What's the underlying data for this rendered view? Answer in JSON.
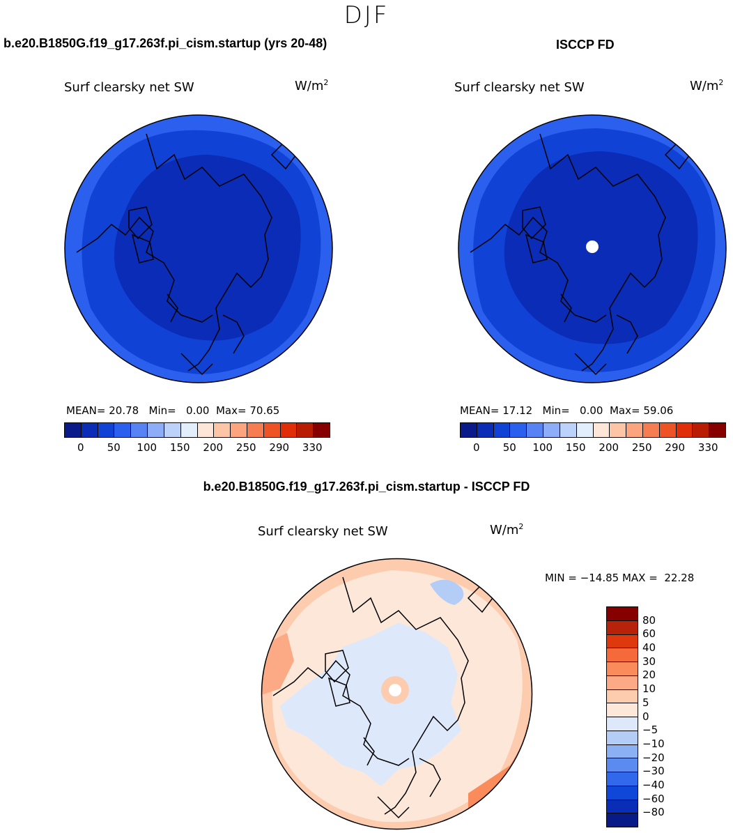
{
  "page": {
    "season": "DJF"
  },
  "chart_data": [
    {
      "type": "heatmap",
      "projection": "north-polar-stereographic",
      "title": "b.e20.B1850G.f19_g17.263f.pi_cism.startup (yrs 20-48)",
      "variable": "Surf clearsky net SW",
      "units_base": "W/m",
      "units_exp": "2",
      "stats": {
        "mean_label": "MEAN=",
        "mean": "20.78",
        "min_label": "Min=",
        "min": "0.00",
        "max_label": "Max=",
        "max": "70.65"
      },
      "zones": [
        {
          "region": "polar interior",
          "value": 15
        },
        {
          "region": "outer ring",
          "value": 35
        },
        {
          "region": "map edge",
          "value": 55
        }
      ],
      "colorbar": {
        "levels": [
          0,
          25,
          50,
          75,
          100,
          125,
          150,
          175,
          200,
          225,
          250,
          275,
          290,
          310,
          330
        ],
        "tick_labels": [
          "0",
          "50",
          "100",
          "150",
          "200",
          "250",
          "290",
          "330"
        ],
        "colors": [
          "#0b1a8a",
          "#0a2cb6",
          "#1142d6",
          "#2b5fee",
          "#5883f5",
          "#8eadf8",
          "#bcd2fb",
          "#e3eefc",
          "#fde6d8",
          "#fcc5a6",
          "#fba47d",
          "#f67d52",
          "#ee5326",
          "#e02e08",
          "#b81c03",
          "#870000"
        ]
      }
    },
    {
      "type": "heatmap",
      "projection": "north-polar-stereographic",
      "title": "ISCCP FD",
      "variable": "Surf clearsky net SW",
      "units_base": "W/m",
      "units_exp": "2",
      "stats": {
        "mean_label": "MEAN=",
        "mean": "17.12",
        "min_label": "Min=",
        "min": "0.00",
        "max_label": "Max=",
        "max": "59.06"
      },
      "zones": [
        {
          "region": "polar interior",
          "value": 12
        },
        {
          "region": "outer ring",
          "value": 32
        },
        {
          "region": "map edge",
          "value": 50
        }
      ],
      "colorbar": {
        "levels": [
          0,
          25,
          50,
          75,
          100,
          125,
          150,
          175,
          200,
          225,
          250,
          275,
          290,
          310,
          330
        ],
        "tick_labels": [
          "0",
          "50",
          "100",
          "150",
          "200",
          "250",
          "290",
          "330"
        ],
        "colors": [
          "#0b1a8a",
          "#0a2cb6",
          "#1142d6",
          "#2b5fee",
          "#5883f5",
          "#8eadf8",
          "#bcd2fb",
          "#e3eefc",
          "#fde6d8",
          "#fcc5a6",
          "#fba47d",
          "#f67d52",
          "#ee5326",
          "#e02e08",
          "#b81c03",
          "#870000"
        ]
      }
    },
    {
      "type": "heatmap",
      "projection": "north-polar-stereographic",
      "title": "b.e20.B1850G.f19_g17.263f.pi_cism.startup - ISCCP FD",
      "variable": "Surf clearsky net SW",
      "units_base": "W/m",
      "units_exp": "2",
      "stats": {
        "text": "MIN = −14.85 MAX =  22.28",
        "min": -14.85,
        "max": 22.28
      },
      "zones": [
        {
          "region": "arctic ocean / land interior",
          "value": -3
        },
        {
          "region": "mid latitudes",
          "value": 3
        },
        {
          "region": "map edge",
          "value": 12
        }
      ],
      "colorbar": {
        "levels": [
          -80,
          -60,
          -40,
          -30,
          -20,
          -10,
          -5,
          0,
          5,
          10,
          20,
          30,
          40,
          60,
          80
        ],
        "tick_labels": [
          "80",
          "60",
          "40",
          "30",
          "20",
          "10",
          "5",
          "0",
          "−5",
          "−10",
          "−20",
          "−30",
          "−40",
          "−60",
          "−80"
        ],
        "colors_top_to_bottom": [
          "#860000",
          "#b7230a",
          "#e0380d",
          "#f56a3a",
          "#fa8c5c",
          "#fcaa85",
          "#fdcbae",
          "#fde7d8",
          "#dde9fb",
          "#b4cdf7",
          "#8cb0f4",
          "#5b8af0",
          "#3268ec",
          "#1147d8",
          "#0a2db8",
          "#081a88"
        ]
      }
    }
  ]
}
